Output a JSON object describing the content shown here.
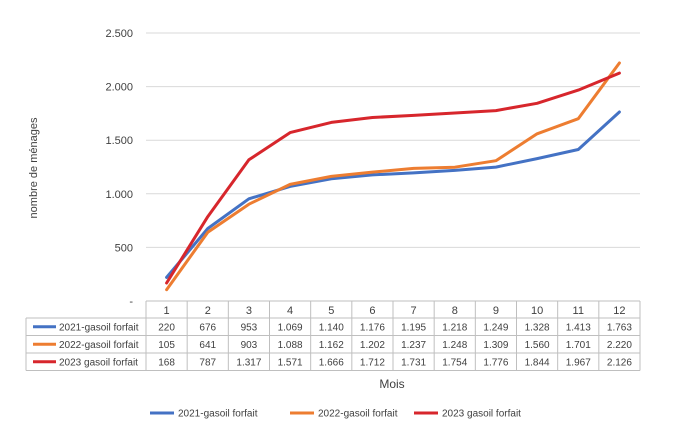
{
  "chart_data": {
    "type": "line",
    "ylabel": "nombre de ménages",
    "xlabel": "Mois",
    "ylim": [
      0,
      2500
    ],
    "ytick_values": [
      0,
      500,
      1000,
      1500,
      2000,
      2500
    ],
    "ytick_labels": [
      "-",
      "500",
      "1.000",
      "1.500",
      "2.000",
      "2.500"
    ],
    "categories": [
      "1",
      "2",
      "3",
      "4",
      "5",
      "6",
      "7",
      "8",
      "9",
      "10",
      "11",
      "12"
    ],
    "grid": "horizontal",
    "legend_position": "bottom",
    "series": [
      {
        "name": "2021-gasoil forfait",
        "color": "#4472C4",
        "values": [
          220,
          676,
          953,
          1069,
          1140,
          1176,
          1195,
          1218,
          1249,
          1328,
          1413,
          1763
        ],
        "labels": [
          "220",
          "676",
          "953",
          "1.069",
          "1.140",
          "1.176",
          "1.195",
          "1.218",
          "1.249",
          "1.328",
          "1.413",
          "1.763"
        ]
      },
      {
        "name": "2022-gasoil forfait",
        "color": "#ED7D31",
        "values": [
          105,
          641,
          903,
          1088,
          1162,
          1202,
          1237,
          1248,
          1309,
          1560,
          1701,
          2220
        ],
        "labels": [
          "105",
          "641",
          "903",
          "1.088",
          "1.162",
          "1.202",
          "1.237",
          "1.248",
          "1.309",
          "1.560",
          "1.701",
          "2.220"
        ]
      },
      {
        "name": "2023 gasoil forfait",
        "color": "#D7262C",
        "values": [
          168,
          787,
          1317,
          1571,
          1666,
          1712,
          1731,
          1754,
          1776,
          1844,
          1967,
          2126
        ],
        "labels": [
          "168",
          "787",
          "1.317",
          "1.571",
          "1.666",
          "1.712",
          "1.731",
          "1.754",
          "1.776",
          "1.844",
          "1.967",
          "2.126"
        ]
      }
    ]
  }
}
